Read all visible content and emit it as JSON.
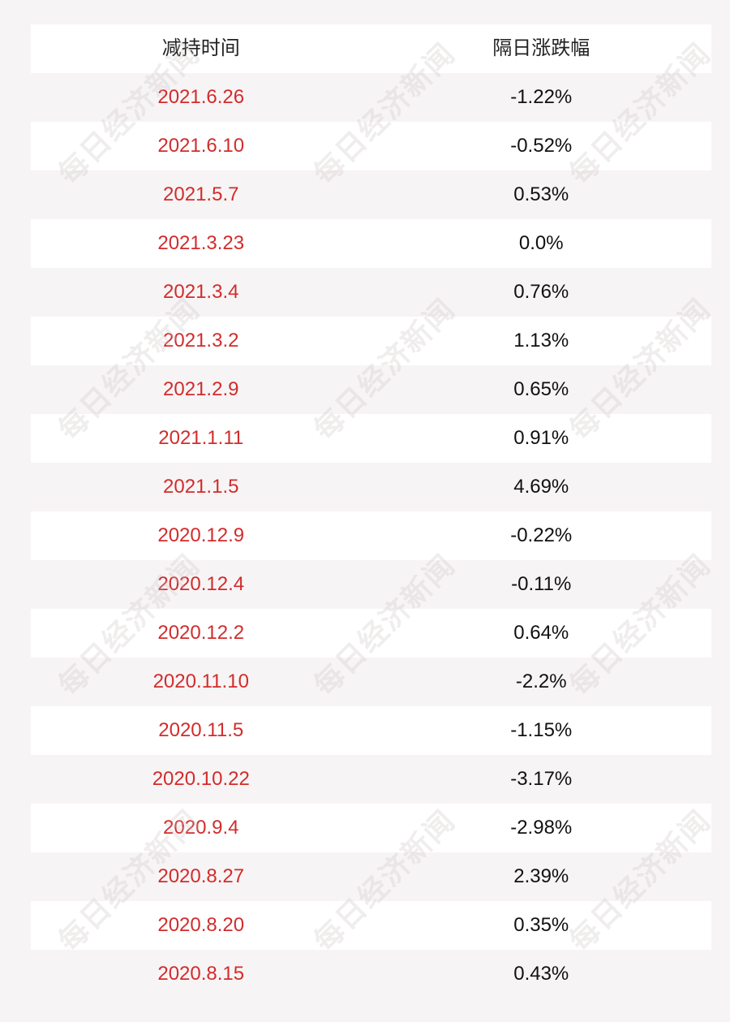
{
  "header": {
    "col_date": "减持时间",
    "col_change": "隔日涨跌幅"
  },
  "rows": [
    {
      "date": "2021.6.26",
      "change": "-1.22%"
    },
    {
      "date": "2021.6.10",
      "change": "-0.52%"
    },
    {
      "date": "2021.5.7",
      "change": "0.53%"
    },
    {
      "date": "2021.3.23",
      "change": "0.0%"
    },
    {
      "date": "2021.3.4",
      "change": "0.76%"
    },
    {
      "date": "2021.3.2",
      "change": "1.13%"
    },
    {
      "date": "2021.2.9",
      "change": "0.65%"
    },
    {
      "date": "2021.1.11",
      "change": "0.91%"
    },
    {
      "date": "2021.1.5",
      "change": "4.69%"
    },
    {
      "date": "2020.12.9",
      "change": "-0.22%"
    },
    {
      "date": "2020.12.4",
      "change": "-0.11%"
    },
    {
      "date": "2020.12.2",
      "change": "0.64%"
    },
    {
      "date": "2020.11.10",
      "change": "-2.2%"
    },
    {
      "date": "2020.11.5",
      "change": "-1.15%"
    },
    {
      "date": "2020.10.22",
      "change": "-3.17%"
    },
    {
      "date": "2020.9.4",
      "change": "-2.98%"
    },
    {
      "date": "2020.8.27",
      "change": "2.39%"
    },
    {
      "date": "2020.8.20",
      "change": "0.35%"
    },
    {
      "date": "2020.8.15",
      "change": "0.43%"
    }
  ],
  "watermark": {
    "text": "每日经济新闻"
  },
  "colors": {
    "date_text": "#d22c2c",
    "value_text": "#111111",
    "row_alt": "#f7f4f5",
    "row_base": "#ffffff"
  }
}
